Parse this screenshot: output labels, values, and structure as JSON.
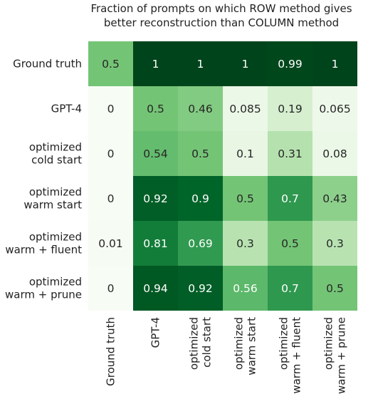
{
  "chart_data": {
    "type": "heatmap",
    "title": [
      "Fraction of prompts on which ROW method gives",
      "better reconstruction than COLUMN method"
    ],
    "rows": [
      [
        "Ground truth"
      ],
      [
        "GPT-4"
      ],
      [
        "optimized",
        "cold start"
      ],
      [
        "optimized",
        "warm start"
      ],
      [
        "optimized",
        "warm + fluent"
      ],
      [
        "optimized",
        "warm + prune"
      ]
    ],
    "columns": [
      [
        "Ground truth"
      ],
      [
        "GPT-4"
      ],
      [
        "optimized",
        "cold start"
      ],
      [
        "optimized",
        "warm start"
      ],
      [
        "optimized",
        "warm + fluent"
      ],
      [
        "optimized",
        "warm + prune"
      ]
    ],
    "values": [
      [
        0.5,
        1,
        1,
        1,
        0.99,
        1
      ],
      [
        0,
        0.5,
        0.46,
        0.085,
        0.19,
        0.065
      ],
      [
        0,
        0.54,
        0.5,
        0.1,
        0.31,
        0.08
      ],
      [
        0,
        0.92,
        0.9,
        0.5,
        0.7,
        0.43
      ],
      [
        0.01,
        0.81,
        0.69,
        0.3,
        0.5,
        0.3
      ],
      [
        0,
        0.94,
        0.92,
        0.56,
        0.7,
        0.5
      ]
    ],
    "labels": [
      [
        "0.5",
        "1",
        "1",
        "1",
        "0.99",
        "1"
      ],
      [
        "0",
        "0.5",
        "0.46",
        "0.085",
        "0.19",
        "0.065"
      ],
      [
        "0",
        "0.54",
        "0.5",
        "0.1",
        "0.31",
        "0.08"
      ],
      [
        "0",
        "0.92",
        "0.9",
        "0.5",
        "0.7",
        "0.43"
      ],
      [
        "0.01",
        "0.81",
        "0.69",
        "0.3",
        "0.5",
        "0.3"
      ],
      [
        "0",
        "0.94",
        "0.92",
        "0.56",
        "0.7",
        "0.5"
      ]
    ],
    "colormap": "Greens",
    "range": [
      0,
      1
    ]
  }
}
